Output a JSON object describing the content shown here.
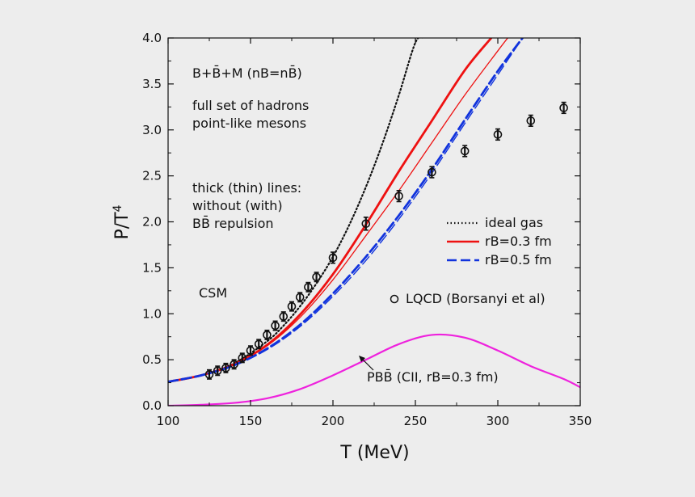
{
  "chart_data": {
    "type": "line",
    "xlabel": "T (MeV)",
    "ylabel": "P/T4",
    "xlim": [
      100,
      350
    ],
    "ylim": [
      0,
      4.0
    ],
    "xticks": [
      "100",
      "150",
      "200",
      "250",
      "300",
      "350"
    ],
    "yticks": [
      "0.0",
      "0.5",
      "1.0",
      "1.5",
      "2.0",
      "2.5",
      "3.0",
      "3.5",
      "4.0"
    ],
    "grid": false,
    "legend_position": "right",
    "annotations": {
      "model": "B+B̄+M (nB=nB̄)",
      "hadrons_line1": "full set of hadrons",
      "hadrons_line2": "point-like mesons",
      "lines_line1": "thick (thin) lines:",
      "lines_line2": "without (with)",
      "lines_line3": "BB̄ repulsion",
      "csm": "CSM",
      "pbb_label": "PBB̄ (CII, rB=0.3 fm)"
    },
    "legend": {
      "ideal": "ideal gas",
      "r03": "rB=0.3 fm",
      "r05": "rB=0.5 fm",
      "lqcd": "LQCD (Borsanyi et al)"
    },
    "series": [
      {
        "name": "ideal gas",
        "color": "#111111",
        "style": "dotted",
        "x": [
          100,
          120,
          140,
          160,
          170,
          180,
          190,
          200,
          210,
          220,
          230,
          240,
          250,
          255
        ],
        "y": [
          0.26,
          0.33,
          0.46,
          0.7,
          0.87,
          1.08,
          1.33,
          1.62,
          1.97,
          2.38,
          2.85,
          3.38,
          3.95,
          4.0
        ]
      },
      {
        "name": "rB=0.3 fm thick",
        "color": "#ee1111",
        "style": "solid-thick",
        "x": [
          100,
          120,
          140,
          160,
          180,
          200,
          220,
          240,
          260,
          280,
          296
        ],
        "y": [
          0.26,
          0.33,
          0.45,
          0.66,
          0.99,
          1.43,
          1.97,
          2.55,
          3.1,
          3.65,
          4.0
        ]
      },
      {
        "name": "rB=0.3 fm thin",
        "color": "#ee1111",
        "style": "solid-thin",
        "x": [
          100,
          120,
          140,
          160,
          180,
          200,
          220,
          240,
          260,
          280,
          300,
          306
        ],
        "y": [
          0.26,
          0.33,
          0.45,
          0.65,
          0.96,
          1.37,
          1.85,
          2.34,
          2.86,
          3.38,
          3.86,
          4.0
        ]
      },
      {
        "name": "rB=0.5 fm thick",
        "color": "#1133dd",
        "style": "dashed-thick",
        "x": [
          100,
          120,
          140,
          160,
          180,
          200,
          220,
          240,
          260,
          280,
          300,
          315
        ],
        "y": [
          0.26,
          0.33,
          0.44,
          0.62,
          0.88,
          1.22,
          1.62,
          2.07,
          2.57,
          3.11,
          3.64,
          4.0
        ]
      },
      {
        "name": "rB=0.5 fm thin",
        "color": "#1133dd",
        "style": "dashed-thin",
        "x": [
          100,
          120,
          140,
          160,
          180,
          200,
          220,
          240,
          260,
          280,
          300,
          315
        ],
        "y": [
          0.26,
          0.33,
          0.44,
          0.61,
          0.86,
          1.19,
          1.58,
          2.03,
          2.53,
          3.07,
          3.6,
          4.0
        ]
      },
      {
        "name": "PBB̄",
        "color": "#ee22dd",
        "style": "solid",
        "x": [
          100,
          120,
          140,
          160,
          180,
          200,
          220,
          240,
          260,
          280,
          300,
          320,
          340,
          350
        ],
        "y": [
          0.0,
          0.01,
          0.03,
          0.08,
          0.18,
          0.33,
          0.5,
          0.67,
          0.77,
          0.74,
          0.6,
          0.43,
          0.29,
          0.2
        ]
      },
      {
        "name": "LQCD (Borsanyi et al)",
        "type": "scatter",
        "color": "#111111",
        "x": [
          125,
          130,
          135,
          140,
          145,
          150,
          155,
          160,
          165,
          170,
          175,
          180,
          185,
          190,
          200,
          220,
          240,
          260,
          280,
          300,
          320,
          340
        ],
        "y": [
          0.34,
          0.38,
          0.41,
          0.45,
          0.52,
          0.6,
          0.67,
          0.77,
          0.87,
          0.97,
          1.08,
          1.18,
          1.29,
          1.4,
          1.61,
          1.98,
          2.28,
          2.54,
          2.77,
          2.95,
          3.1,
          3.24
        ],
        "err": [
          0.05,
          0.05,
          0.05,
          0.05,
          0.05,
          0.05,
          0.05,
          0.05,
          0.05,
          0.05,
          0.05,
          0.05,
          0.05,
          0.05,
          0.06,
          0.07,
          0.06,
          0.06,
          0.06,
          0.06,
          0.06,
          0.06
        ]
      }
    ]
  }
}
